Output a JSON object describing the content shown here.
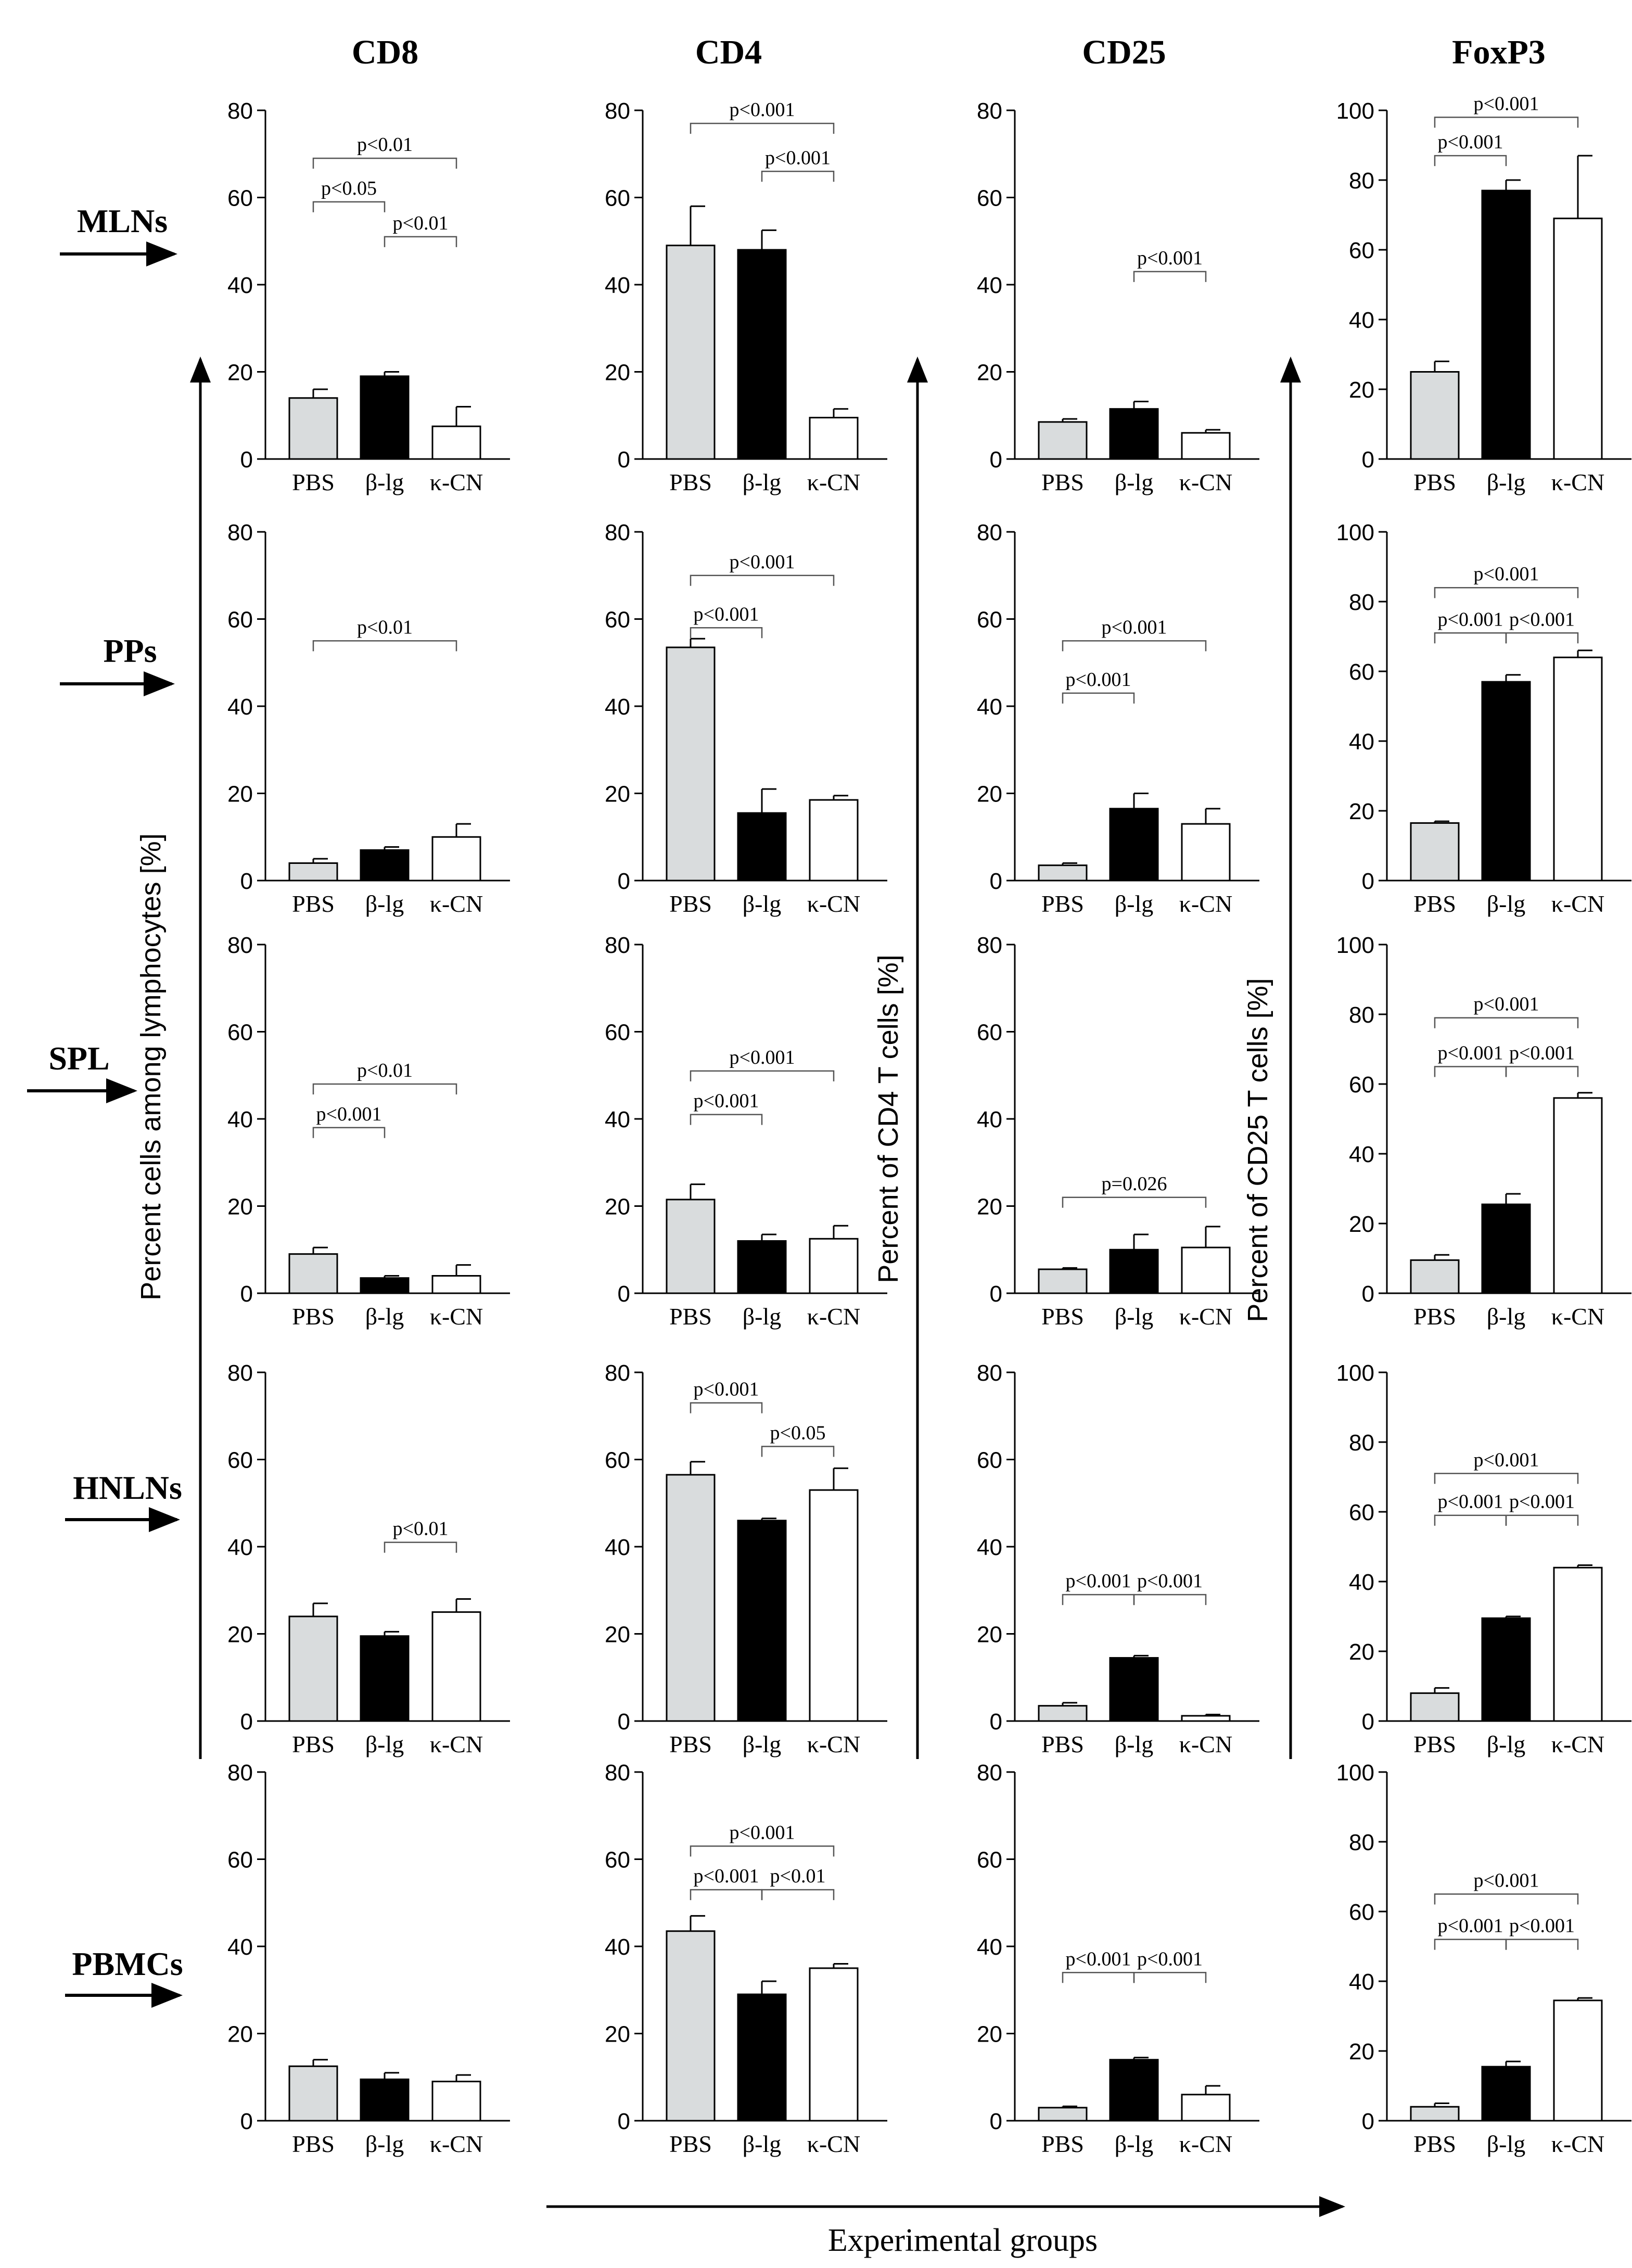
{
  "figure": {
    "x_axis_title": "Experimental groups",
    "groups": [
      "PBS",
      "β-lg",
      "κ-CN"
    ],
    "colors": {
      "PBS": "#d9dcdd",
      "β-lg": "#000000",
      "κ-CN": "#ffffff"
    }
  },
  "column_headers": [
    "CD8",
    "CD4",
    "CD25",
    "FoxP3"
  ],
  "row_labels": [
    "MLNs",
    "PPs",
    "SPL",
    "HNLNs",
    "PBMCs"
  ],
  "y_axis_titles": [
    "Percent cells among lymphocytes [%]",
    "Percent of CD4 T cells  [%]",
    "Percent of CD25 T cells  [%]"
  ],
  "chart_data": [
    {
      "type": "bar",
      "marker": "CD8",
      "tissue": "MLNs",
      "categories": [
        "PBS",
        "β-lg",
        "κ-CN"
      ],
      "values": [
        14,
        19,
        7.5
      ],
      "errors": [
        2,
        1,
        4.5
      ],
      "ylim": [
        0,
        80
      ],
      "yticks": [
        0,
        20,
        40,
        60,
        80
      ],
      "annotations": [
        {
          "from": 0,
          "to": 2,
          "level": 69,
          "text": "p<0.01"
        },
        {
          "from": 0,
          "to": 1,
          "level": 59,
          "text": "p<0.05"
        },
        {
          "from": 1,
          "to": 2,
          "level": 51,
          "text": "p<0.01"
        }
      ]
    },
    {
      "type": "bar",
      "marker": "CD4",
      "tissue": "MLNs",
      "categories": [
        "PBS",
        "β-lg",
        "κ-CN"
      ],
      "values": [
        49,
        48,
        9.5
      ],
      "errors": [
        9,
        4.5,
        2
      ],
      "ylim": [
        0,
        80
      ],
      "yticks": [
        0,
        20,
        40,
        60,
        80
      ],
      "annotations": [
        {
          "from": 0,
          "to": 2,
          "level": 77,
          "text": "p<0.001"
        },
        {
          "from": 1,
          "to": 2,
          "level": 66,
          "text": "p<0.001"
        }
      ]
    },
    {
      "type": "bar",
      "marker": "CD25",
      "tissue": "MLNs",
      "categories": [
        "PBS",
        "β-lg",
        "κ-CN"
      ],
      "values": [
        8.5,
        11.5,
        6
      ],
      "errors": [
        0.7,
        1.7,
        0.7
      ],
      "ylim": [
        0,
        80
      ],
      "yticks": [
        0,
        20,
        40,
        60,
        80
      ],
      "annotations": [
        {
          "from": 1,
          "to": 2,
          "level": 43,
          "text": "p<0.001"
        }
      ]
    },
    {
      "type": "bar",
      "marker": "FoxP3",
      "tissue": "MLNs",
      "categories": [
        "PBS",
        "β-lg",
        "κ-CN"
      ],
      "values": [
        25,
        77,
        69
      ],
      "errors": [
        3,
        3,
        18
      ],
      "ylim": [
        0,
        100
      ],
      "yticks": [
        0,
        20,
        40,
        60,
        80,
        100
      ],
      "annotations": [
        {
          "from": 0,
          "to": 2,
          "level": 98,
          "text": "p<0.001"
        },
        {
          "from": 0,
          "to": 1,
          "level": 87,
          "text": "p<0.001"
        }
      ]
    },
    {
      "type": "bar",
      "marker": "CD8",
      "tissue": "PPs",
      "categories": [
        "PBS",
        "β-lg",
        "κ-CN"
      ],
      "values": [
        4,
        7,
        10
      ],
      "errors": [
        1,
        0.7,
        3
      ],
      "ylim": [
        0,
        80
      ],
      "yticks": [
        0,
        20,
        40,
        60,
        80
      ],
      "annotations": [
        {
          "from": 0,
          "to": 2,
          "level": 55,
          "text": "p<0.01"
        }
      ]
    },
    {
      "type": "bar",
      "marker": "CD4",
      "tissue": "PPs",
      "categories": [
        "PBS",
        "β-lg",
        "κ-CN"
      ],
      "values": [
        53.5,
        15.5,
        18.5
      ],
      "errors": [
        2,
        5.5,
        1
      ],
      "ylim": [
        0,
        80
      ],
      "yticks": [
        0,
        20,
        40,
        60,
        80
      ],
      "annotations": [
        {
          "from": 0,
          "to": 2,
          "level": 70,
          "text": "p<0.001"
        },
        {
          "from": 0,
          "to": 1,
          "level": 58,
          "text": "p<0.001"
        }
      ]
    },
    {
      "type": "bar",
      "marker": "CD25",
      "tissue": "PPs",
      "categories": [
        "PBS",
        "β-lg",
        "κ-CN"
      ],
      "values": [
        3.5,
        16.5,
        13
      ],
      "errors": [
        0.5,
        3.5,
        3.5
      ],
      "ylim": [
        0,
        80
      ],
      "yticks": [
        0,
        20,
        40,
        60,
        80
      ],
      "annotations": [
        {
          "from": 0,
          "to": 2,
          "level": 55,
          "text": "p<0.001"
        },
        {
          "from": 0,
          "to": 1,
          "level": 43,
          "text": "p<0.001"
        }
      ]
    },
    {
      "type": "bar",
      "marker": "FoxP3",
      "tissue": "PPs",
      "categories": [
        "PBS",
        "β-lg",
        "κ-CN"
      ],
      "values": [
        16.5,
        57,
        64
      ],
      "errors": [
        0.5,
        2,
        2
      ],
      "ylim": [
        0,
        100
      ],
      "yticks": [
        0,
        20,
        40,
        60,
        80,
        100
      ],
      "annotations": [
        {
          "from": 0,
          "to": 2,
          "level": 84,
          "text": "p<0.001"
        },
        {
          "from": 0,
          "to": 1,
          "level": 71,
          "text": "p<0.001"
        },
        {
          "from": 1,
          "to": 2,
          "level": 71,
          "text": "p<0.001"
        }
      ]
    },
    {
      "type": "bar",
      "marker": "CD8",
      "tissue": "SPL",
      "categories": [
        "PBS",
        "β-lg",
        "κ-CN"
      ],
      "values": [
        9,
        3.5,
        4
      ],
      "errors": [
        1.5,
        0.5,
        2.5
      ],
      "ylim": [
        0,
        80
      ],
      "yticks": [
        0,
        20,
        40,
        60,
        80
      ],
      "annotations": [
        {
          "from": 0,
          "to": 2,
          "level": 48,
          "text": "p<0.01"
        },
        {
          "from": 0,
          "to": 1,
          "level": 38,
          "text": "p<0.001"
        }
      ]
    },
    {
      "type": "bar",
      "marker": "CD4",
      "tissue": "SPL",
      "categories": [
        "PBS",
        "β-lg",
        "κ-CN"
      ],
      "values": [
        21.5,
        12,
        12.5
      ],
      "errors": [
        3.5,
        1.5,
        3
      ],
      "ylim": [
        0,
        80
      ],
      "yticks": [
        0,
        20,
        40,
        60,
        80
      ],
      "annotations": [
        {
          "from": 0,
          "to": 2,
          "level": 51,
          "text": "p<0.001"
        },
        {
          "from": 0,
          "to": 1,
          "level": 41,
          "text": "p<0.001"
        }
      ]
    },
    {
      "type": "bar",
      "marker": "CD25",
      "tissue": "SPL",
      "categories": [
        "PBS",
        "β-lg",
        "κ-CN"
      ],
      "values": [
        5.5,
        10,
        10.5
      ],
      "errors": [
        0.3,
        3.5,
        4.8
      ],
      "ylim": [
        0,
        80
      ],
      "yticks": [
        0,
        20,
        40,
        60,
        80
      ],
      "annotations": [
        {
          "from": 0,
          "to": 2,
          "level": 22,
          "text": "p=0.026"
        }
      ]
    },
    {
      "type": "bar",
      "marker": "FoxP3",
      "tissue": "SPL",
      "categories": [
        "PBS",
        "β-lg",
        "κ-CN"
      ],
      "values": [
        9.5,
        25.5,
        56
      ],
      "errors": [
        1.5,
        3,
        1.5
      ],
      "ylim": [
        0,
        100
      ],
      "yticks": [
        0,
        20,
        40,
        60,
        80,
        100
      ],
      "annotations": [
        {
          "from": 0,
          "to": 2,
          "level": 79,
          "text": "p<0.001"
        },
        {
          "from": 0,
          "to": 1,
          "level": 65,
          "text": "p<0.001"
        },
        {
          "from": 1,
          "to": 2,
          "level": 65,
          "text": "p<0.001"
        }
      ]
    },
    {
      "type": "bar",
      "marker": "CD8",
      "tissue": "HNLNs",
      "categories": [
        "PBS",
        "β-lg",
        "κ-CN"
      ],
      "values": [
        24,
        19.5,
        25
      ],
      "errors": [
        3,
        1,
        3
      ],
      "ylim": [
        0,
        80
      ],
      "yticks": [
        0,
        20,
        40,
        60,
        80
      ],
      "annotations": [
        {
          "from": 1,
          "to": 2,
          "level": 41,
          "text": "p<0.01"
        }
      ]
    },
    {
      "type": "bar",
      "marker": "CD4",
      "tissue": "HNLNs",
      "categories": [
        "PBS",
        "β-lg",
        "κ-CN"
      ],
      "values": [
        56.5,
        46,
        53
      ],
      "errors": [
        3,
        0.5,
        5
      ],
      "ylim": [
        0,
        80
      ],
      "yticks": [
        0,
        20,
        40,
        60,
        80
      ],
      "annotations": [
        {
          "from": 0,
          "to": 1,
          "level": 73,
          "text": "p<0.001"
        },
        {
          "from": 1,
          "to": 2,
          "level": 63,
          "text": "p<0.05"
        }
      ]
    },
    {
      "type": "bar",
      "marker": "CD25",
      "tissue": "HNLNs",
      "categories": [
        "PBS",
        "β-lg",
        "κ-CN"
      ],
      "values": [
        3.5,
        14.5,
        1.2
      ],
      "errors": [
        0.7,
        0.5,
        0.3
      ],
      "ylim": [
        0,
        80
      ],
      "yticks": [
        0,
        20,
        40,
        60,
        80
      ],
      "annotations": [
        {
          "from": 0,
          "to": 1,
          "level": 29,
          "text": "p<0.001"
        },
        {
          "from": 1,
          "to": 2,
          "level": 29,
          "text": "p<0.001"
        }
      ]
    },
    {
      "type": "bar",
      "marker": "FoxP3",
      "tissue": "HNLNs",
      "categories": [
        "PBS",
        "β-lg",
        "κ-CN"
      ],
      "values": [
        8,
        29.5,
        44
      ],
      "errors": [
        1.5,
        0.5,
        0.7
      ],
      "ylim": [
        0,
        100
      ],
      "yticks": [
        0,
        20,
        40,
        60,
        80,
        100
      ],
      "annotations": [
        {
          "from": 0,
          "to": 2,
          "level": 71,
          "text": "p<0.001"
        },
        {
          "from": 0,
          "to": 1,
          "level": 59,
          "text": "p<0.001"
        },
        {
          "from": 1,
          "to": 2,
          "level": 59,
          "text": "p<0.001"
        }
      ]
    },
    {
      "type": "bar",
      "marker": "CD8",
      "tissue": "PBMCs",
      "categories": [
        "PBS",
        "β-lg",
        "κ-CN"
      ],
      "values": [
        12.5,
        9.5,
        9
      ],
      "errors": [
        1.5,
        1.5,
        1.5
      ],
      "ylim": [
        0,
        80
      ],
      "yticks": [
        0,
        20,
        40,
        60,
        80
      ],
      "annotations": []
    },
    {
      "type": "bar",
      "marker": "CD4",
      "tissue": "PBMCs",
      "categories": [
        "PBS",
        "β-lg",
        "κ-CN"
      ],
      "values": [
        43.5,
        29,
        35
      ],
      "errors": [
        3.5,
        3,
        1
      ],
      "ylim": [
        0,
        80
      ],
      "yticks": [
        0,
        20,
        40,
        60,
        80
      ],
      "annotations": [
        {
          "from": 0,
          "to": 2,
          "level": 63,
          "text": "p<0.001"
        },
        {
          "from": 0,
          "to": 1,
          "level": 53,
          "text": "p<0.001"
        },
        {
          "from": 1,
          "to": 2,
          "level": 53,
          "text": "p<0.01"
        }
      ]
    },
    {
      "type": "bar",
      "marker": "CD25",
      "tissue": "PBMCs",
      "categories": [
        "PBS",
        "β-lg",
        "κ-CN"
      ],
      "values": [
        3,
        14,
        6
      ],
      "errors": [
        0.3,
        0.5,
        2
      ],
      "ylim": [
        0,
        80
      ],
      "yticks": [
        0,
        20,
        40,
        60,
        80
      ],
      "annotations": [
        {
          "from": 0,
          "to": 1,
          "level": 34,
          "text": "p<0.001"
        },
        {
          "from": 1,
          "to": 2,
          "level": 34,
          "text": "p<0.001"
        }
      ]
    },
    {
      "type": "bar",
      "marker": "FoxP3",
      "tissue": "PBMCs",
      "categories": [
        "PBS",
        "β-lg",
        "κ-CN"
      ],
      "values": [
        4,
        15.5,
        34.5
      ],
      "errors": [
        1,
        1.5,
        0.7
      ],
      "ylim": [
        0,
        100
      ],
      "yticks": [
        0,
        20,
        40,
        60,
        80,
        100
      ],
      "annotations": [
        {
          "from": 0,
          "to": 2,
          "level": 65,
          "text": "p<0.001"
        },
        {
          "from": 0,
          "to": 1,
          "level": 52,
          "text": "p<0.001"
        },
        {
          "from": 1,
          "to": 2,
          "level": 52,
          "text": "p<0.001"
        }
      ]
    }
  ]
}
